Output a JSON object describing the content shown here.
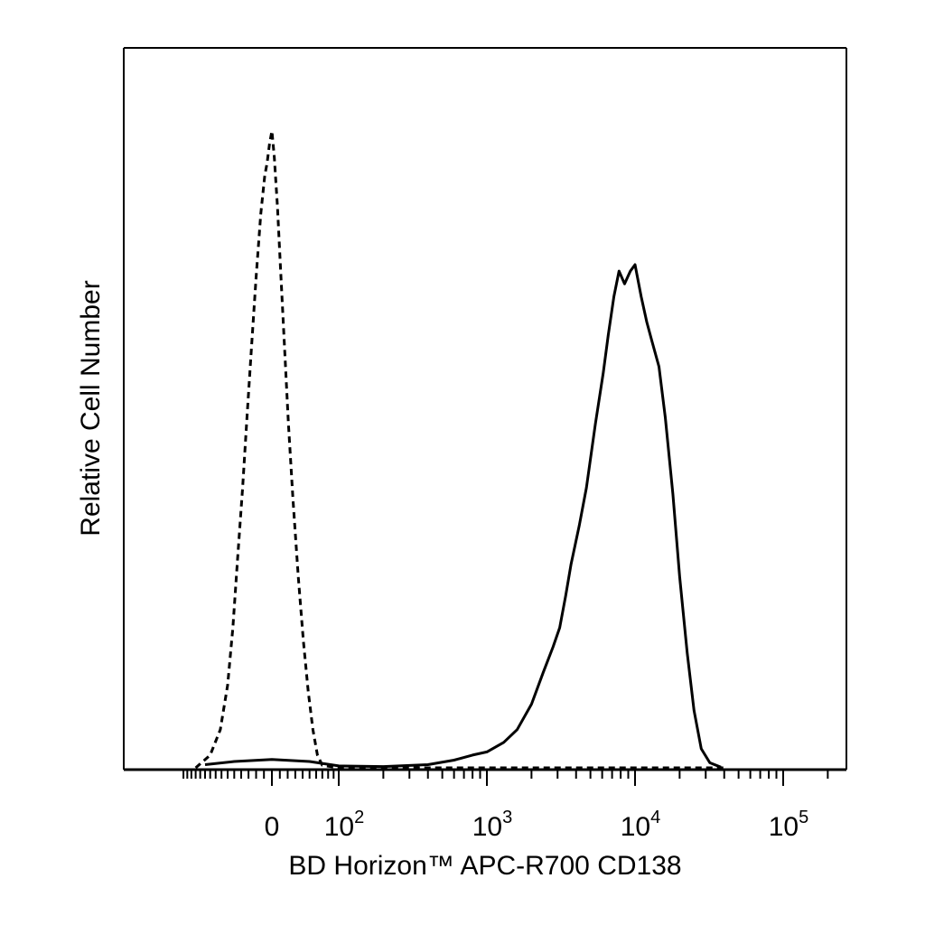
{
  "chart_data": {
    "type": "line",
    "title": "",
    "xlabel": "BD Horizon™ APC-R700 CD138",
    "ylabel": "Relative Cell Number",
    "x_scale": "biexponential",
    "x_ticks": [
      {
        "value": 0,
        "label": "0"
      },
      {
        "value": 100,
        "base": "10",
        "exp": "2"
      },
      {
        "value": 1000,
        "base": "10",
        "exp": "3"
      },
      {
        "value": 10000,
        "base": "10",
        "exp": "4"
      },
      {
        "value": 100000,
        "base": "10",
        "exp": "5"
      }
    ],
    "xlim": [
      -150,
      250000
    ],
    "ylim": [
      0,
      100
    ],
    "grid": false,
    "legend": "none",
    "series": [
      {
        "style": "dashed",
        "color": "#000000",
        "points": [
          [
            -120,
            0
          ],
          [
            -90,
            2
          ],
          [
            -72,
            6
          ],
          [
            -60,
            13
          ],
          [
            -52,
            22
          ],
          [
            -45,
            33
          ],
          [
            -38,
            44
          ],
          [
            -32,
            55
          ],
          [
            -26,
            66
          ],
          [
            -20,
            77
          ],
          [
            -14,
            87
          ],
          [
            -9,
            93
          ],
          [
            -6,
            95
          ],
          [
            -3,
            98
          ],
          [
            0,
            100
          ],
          [
            3,
            96
          ],
          [
            7,
            88
          ],
          [
            11,
            78
          ],
          [
            16,
            66
          ],
          [
            21,
            54
          ],
          [
            27,
            42
          ],
          [
            34,
            30
          ],
          [
            41,
            20
          ],
          [
            48,
            12
          ],
          [
            55,
            6
          ],
          [
            62,
            2
          ],
          [
            70,
            0.4
          ],
          [
            100,
            0
          ],
          [
            1000,
            0
          ],
          [
            10000,
            0
          ],
          [
            40000,
            0
          ]
        ]
      },
      {
        "style": "solid",
        "color": "#000000",
        "points": [
          [
            -100,
            0.5
          ],
          [
            -50,
            1
          ],
          [
            0,
            1.3
          ],
          [
            50,
            1
          ],
          [
            100,
            0.3
          ],
          [
            200,
            0.2
          ],
          [
            400,
            0.5
          ],
          [
            600,
            1.2
          ],
          [
            800,
            2
          ],
          [
            1000,
            2.5
          ],
          [
            1300,
            4
          ],
          [
            1600,
            6
          ],
          [
            2000,
            10
          ],
          [
            2400,
            15
          ],
          [
            2800,
            19
          ],
          [
            3100,
            22
          ],
          [
            3400,
            27
          ],
          [
            3700,
            32
          ],
          [
            4200,
            38
          ],
          [
            4700,
            44
          ],
          [
            5400,
            54
          ],
          [
            6100,
            62
          ],
          [
            6600,
            68
          ],
          [
            7200,
            74
          ],
          [
            7800,
            78
          ],
          [
            8500,
            76
          ],
          [
            9300,
            78
          ],
          [
            10000,
            79
          ],
          [
            11000,
            74
          ],
          [
            12000,
            70
          ],
          [
            13000,
            67
          ],
          [
            14500,
            63
          ],
          [
            16000,
            55
          ],
          [
            18000,
            43
          ],
          [
            20000,
            30
          ],
          [
            22500,
            18
          ],
          [
            25000,
            9
          ],
          [
            28000,
            3
          ],
          [
            32000,
            0.8
          ],
          [
            38000,
            0.1
          ]
        ]
      }
    ]
  }
}
